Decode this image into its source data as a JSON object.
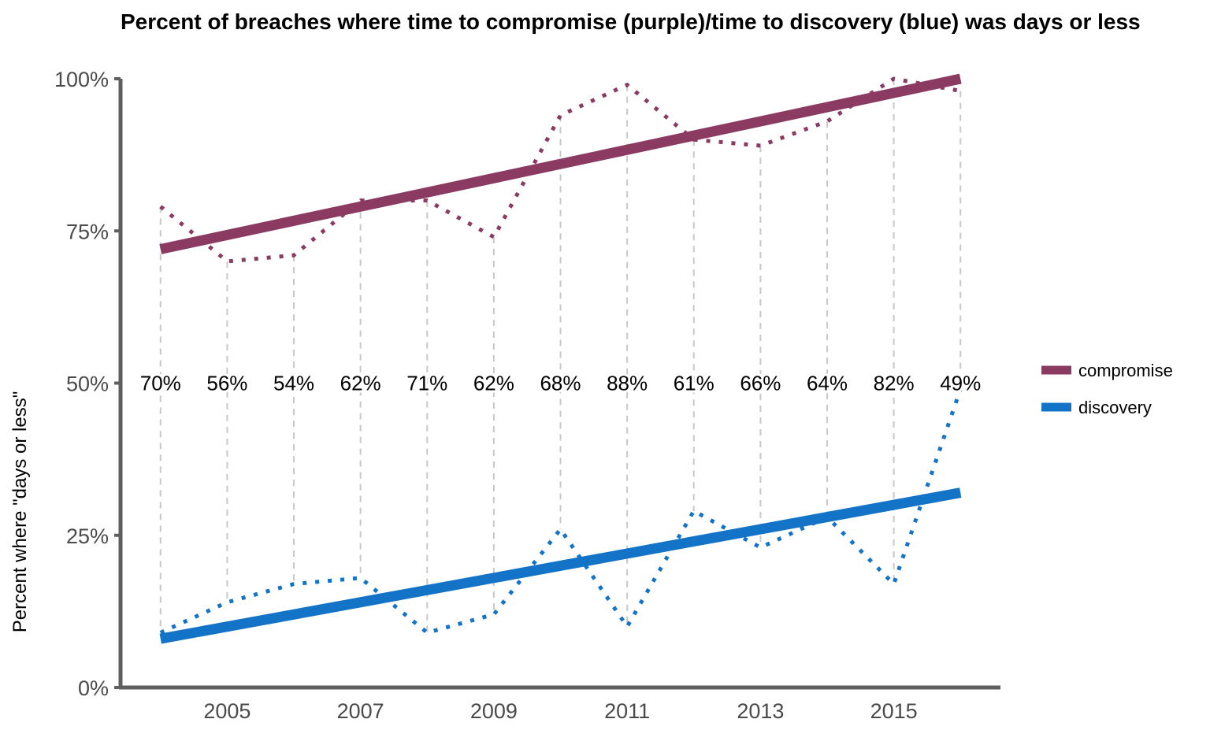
{
  "chart_data": {
    "type": "line",
    "title": "Percent of breaches where time to compromise (purple)/time to discovery (blue) was days or less",
    "xlabel": "",
    "ylabel": "Percent where \"days or less\"",
    "x": [
      2004,
      2005,
      2006,
      2007,
      2008,
      2009,
      2010,
      2011,
      2012,
      2013,
      2014,
      2015,
      2016
    ],
    "x_ticks": [
      2005,
      2007,
      2009,
      2011,
      2013,
      2015
    ],
    "x_tick_labels": [
      "2005",
      "2007",
      "2009",
      "2011",
      "2013",
      "2015"
    ],
    "xlim": [
      2003.4,
      2016.6
    ],
    "ylim": [
      0,
      1
    ],
    "y_ticks": [
      0,
      0.25,
      0.5,
      0.75,
      1
    ],
    "y_tick_labels": [
      "0%",
      "25%",
      "50%",
      "75%",
      "100%"
    ],
    "grid": "vertical dashed lines at each year",
    "legend_position": "right",
    "series": [
      {
        "name": "compromise",
        "color": "#8b3a62",
        "values": [
          0.79,
          0.7,
          0.71,
          0.8,
          0.8,
          0.74,
          0.94,
          0.99,
          0.9,
          0.89,
          0.93,
          1.0,
          0.98
        ],
        "trend": [
          0.72,
          1.0
        ]
      },
      {
        "name": "discovery",
        "color": "#1373c6",
        "values": [
          0.09,
          0.14,
          0.17,
          0.18,
          0.09,
          0.12,
          0.26,
          0.1,
          0.29,
          0.23,
          0.28,
          0.17,
          0.49
        ],
        "trend": [
          0.08,
          0.32
        ]
      }
    ],
    "annotations": [
      "70%",
      "56%",
      "54%",
      "62%",
      "71%",
      "62%",
      "68%",
      "88%",
      "61%",
      "66%",
      "64%",
      "82%",
      "49%"
    ],
    "annotation_y": 0.5
  },
  "colors": {
    "axis": "#5f5f5f",
    "grid": "#c8c8c8"
  }
}
